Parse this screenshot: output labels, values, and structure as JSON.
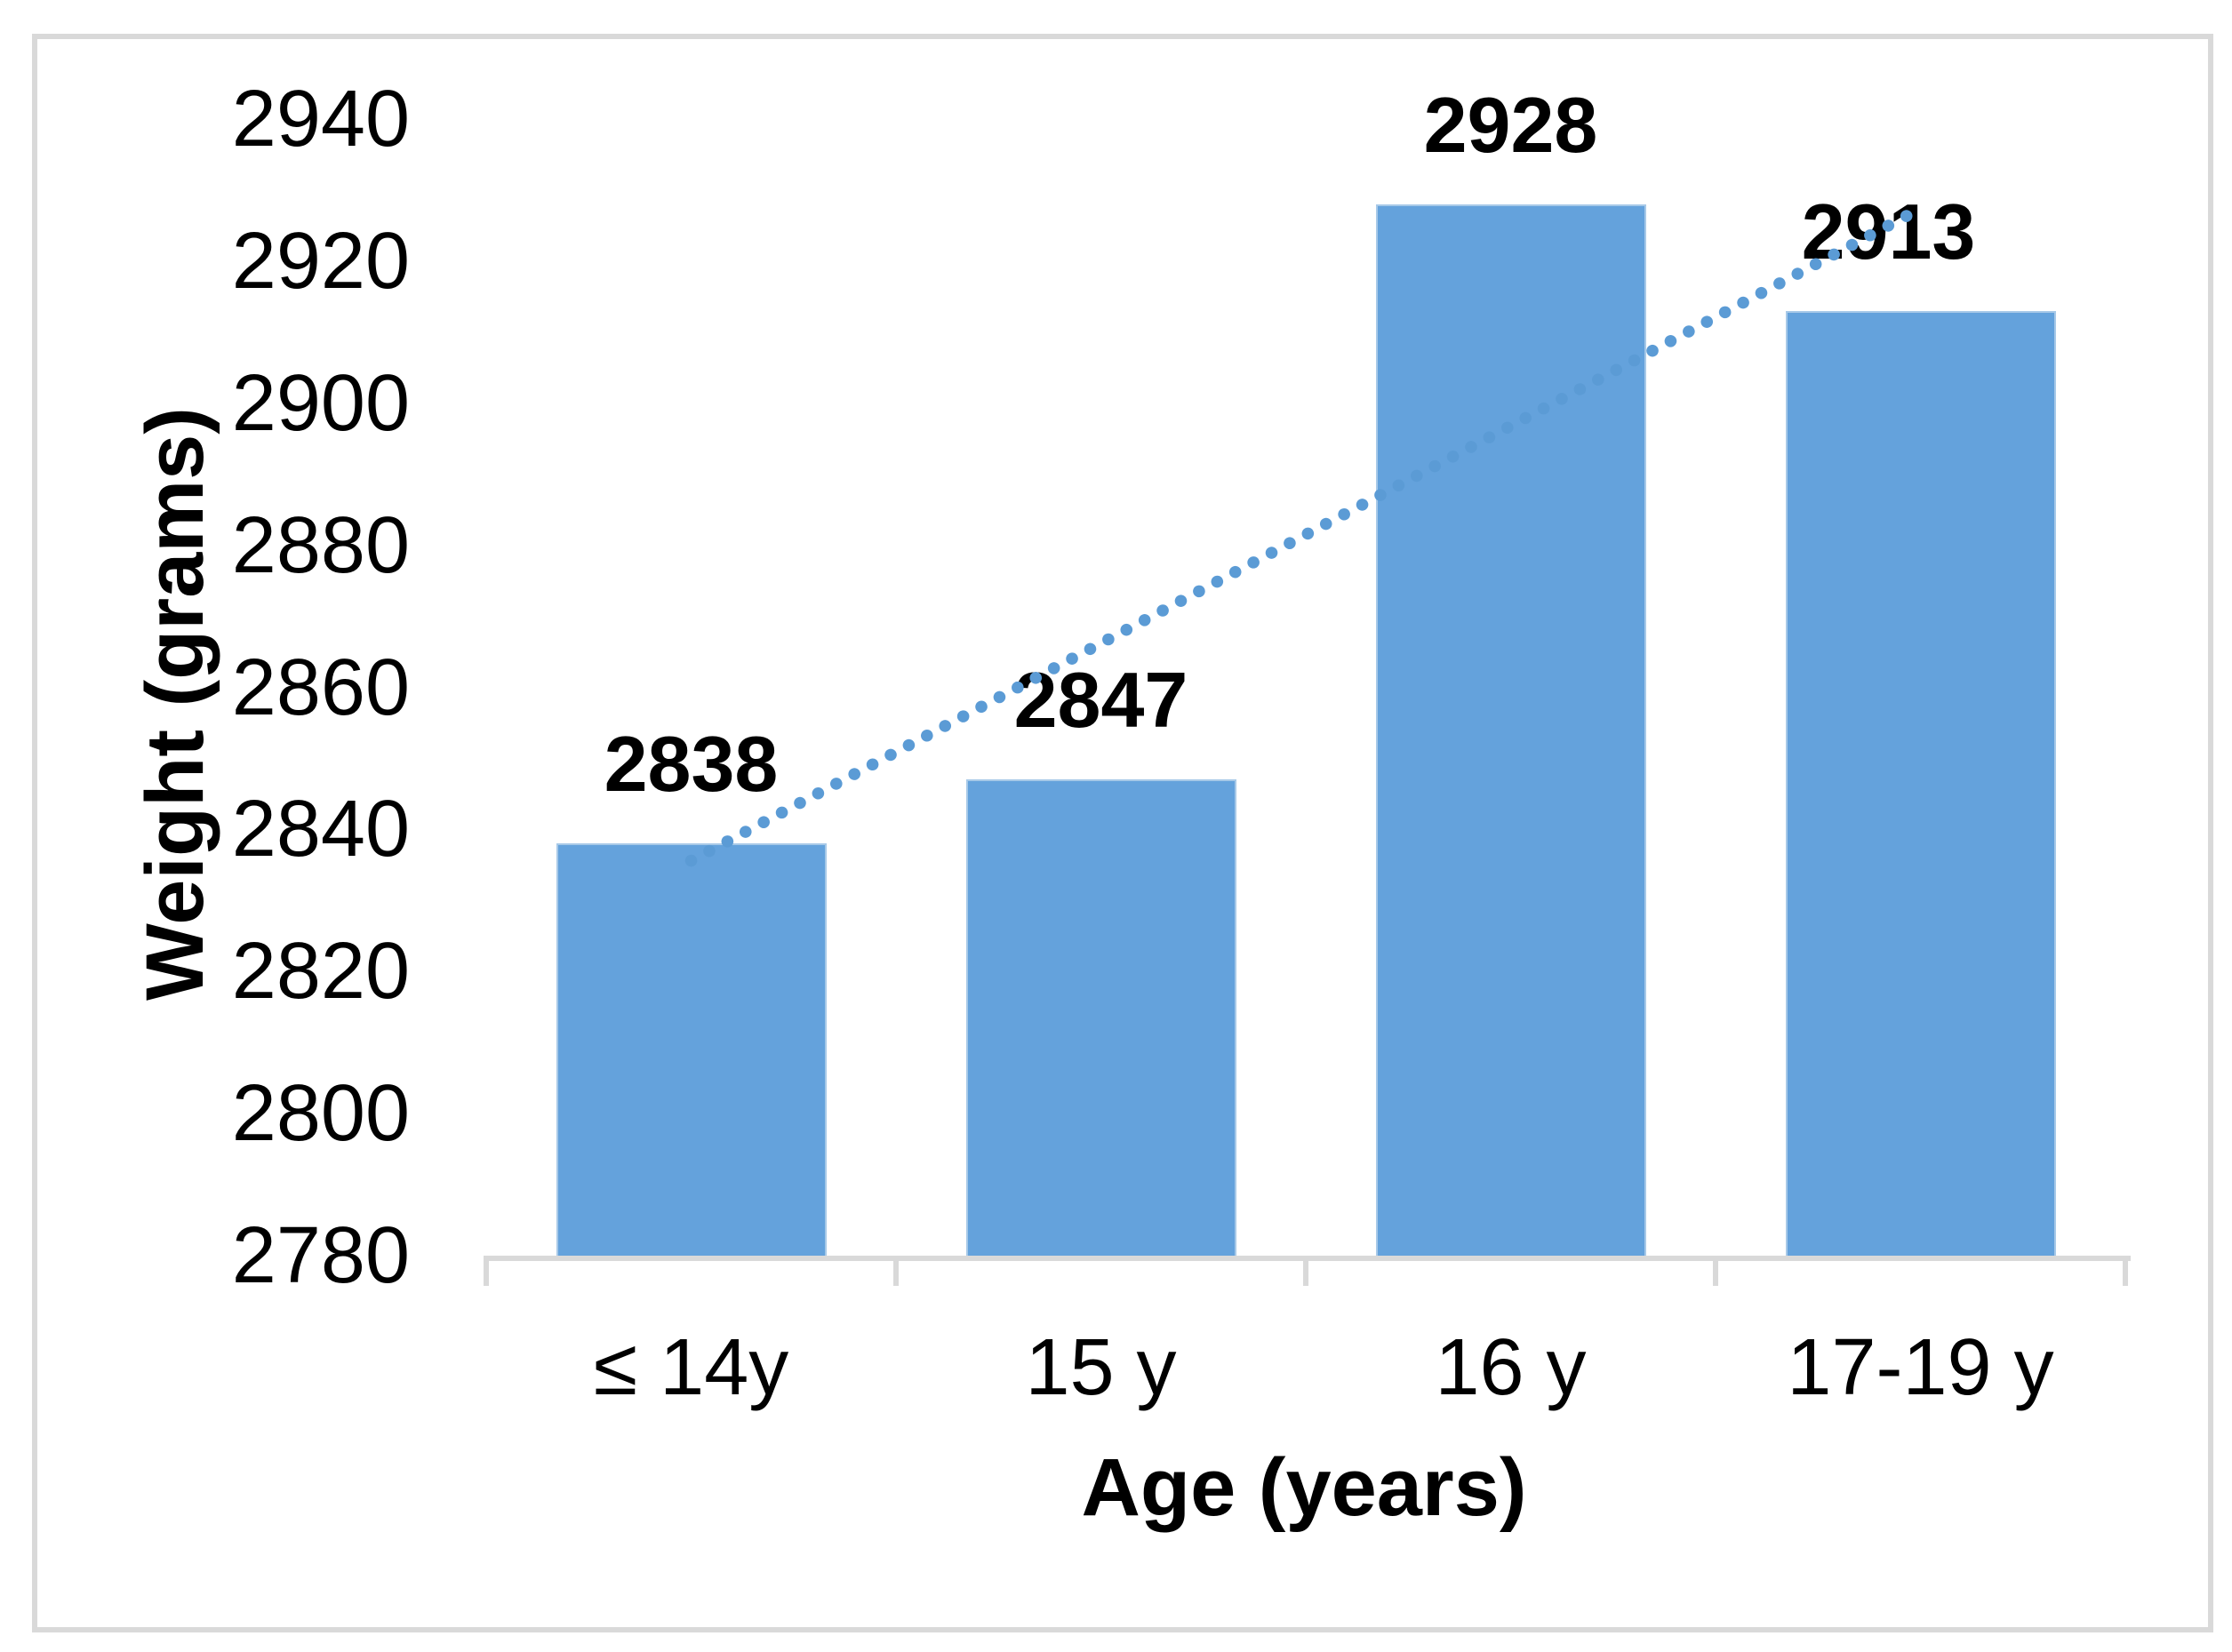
{
  "chart_data": {
    "type": "bar",
    "title": "",
    "categories": [
      "≤ 14y",
      "15 y",
      "16 y",
      "17-19 y"
    ],
    "values": [
      2838,
      2847,
      2928,
      2913
    ],
    "data_labels": [
      "2838",
      "2847",
      "2928",
      "2913"
    ],
    "xlabel": "Age (years)",
    "ylabel": "Weight (grams)",
    "ylim": [
      2780,
      2940
    ],
    "ytick_step": 20,
    "yticks": [
      2780,
      2800,
      2820,
      2840,
      2860,
      2880,
      2900,
      2920,
      2940
    ],
    "grid": false,
    "legend": "none",
    "bar_color": "#64A2DC",
    "bar_edge_color": "#A7C9E8",
    "axis_color": "#D9D9D9",
    "text_color": "#000000",
    "trendline": {
      "type": "linear",
      "style": "dotted",
      "color": "#5B9BD5"
    }
  }
}
